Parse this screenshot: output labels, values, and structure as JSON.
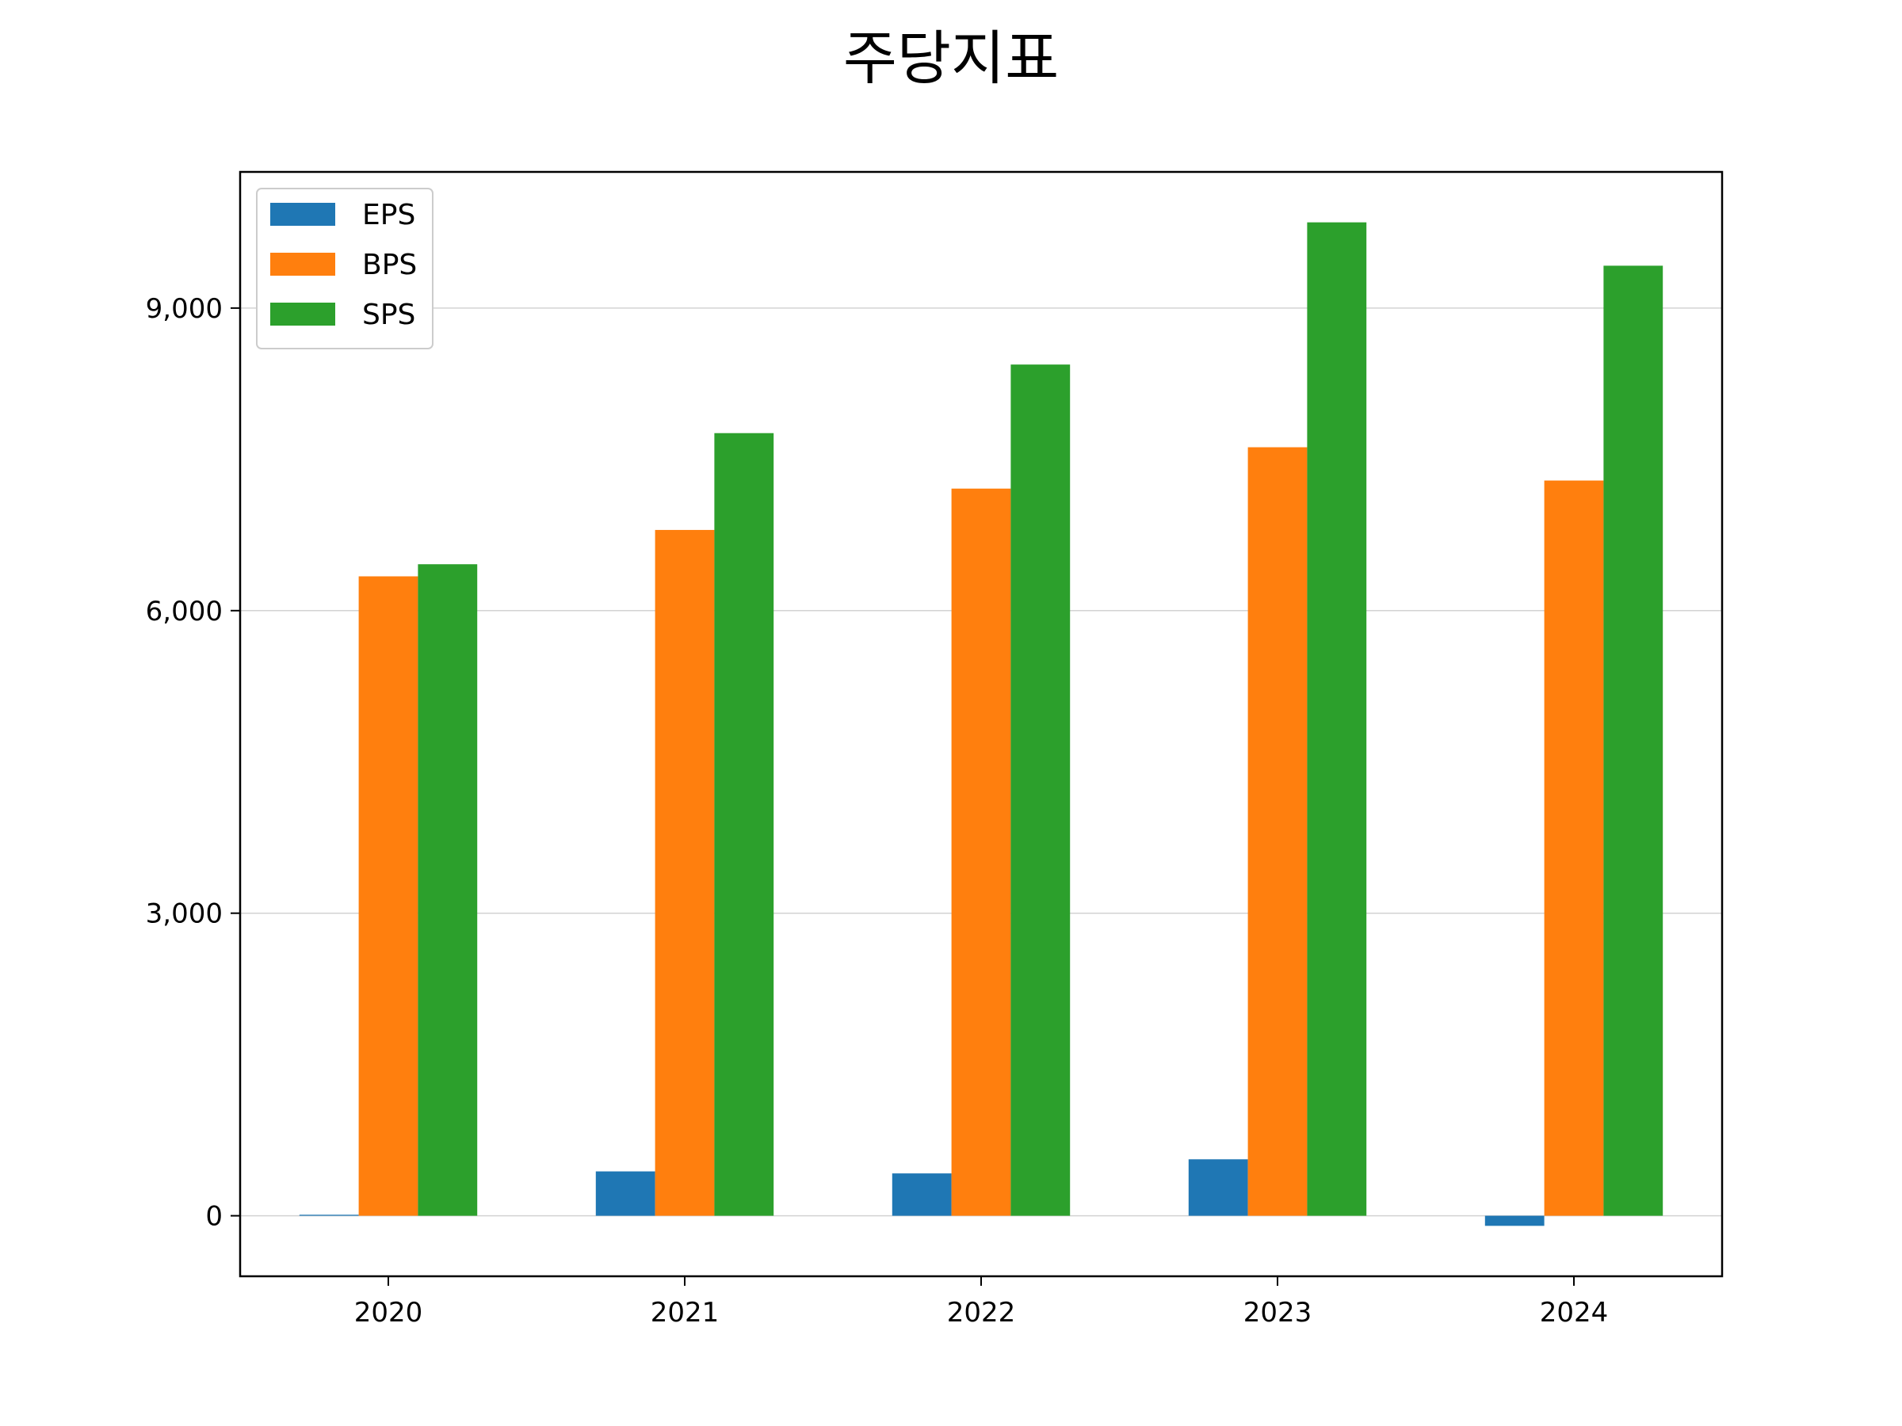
{
  "chart_data": {
    "type": "bar",
    "title": "주당지표",
    "categories": [
      "2020",
      "2021",
      "2022",
      "2023",
      "2024"
    ],
    "series": [
      {
        "name": "EPS",
        "color": "#1f77b4",
        "values": [
          10,
          440,
          420,
          560,
          -100
        ]
      },
      {
        "name": "BPS",
        "color": "#ff7f0e",
        "values": [
          6340,
          6800,
          7210,
          7620,
          7290
        ]
      },
      {
        "name": "SPS",
        "color": "#2ca02c",
        "values": [
          6460,
          7760,
          8440,
          9850,
          9420
        ]
      }
    ],
    "yticks": [
      0,
      3000,
      6000,
      9000
    ],
    "ytick_labels": [
      "0",
      "3,000",
      "6,000",
      "9,000"
    ],
    "ylim": [
      -600,
      10350
    ],
    "grid": "y",
    "legend_position": "top-left"
  }
}
